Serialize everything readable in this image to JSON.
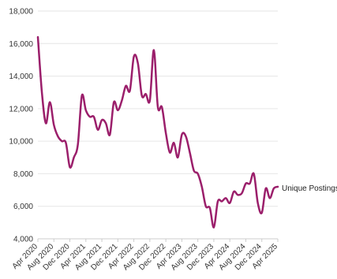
{
  "chart_data": {
    "type": "line",
    "title": "",
    "xlabel": "",
    "ylabel": "",
    "ylim": [
      4000,
      18000
    ],
    "yticks": [
      4000,
      6000,
      8000,
      10000,
      12000,
      14000,
      16000,
      18000
    ],
    "ytick_labels": [
      "4,000",
      "6,000",
      "8,000",
      "10,000",
      "12,000",
      "14,000",
      "16,000",
      "18,000"
    ],
    "xticks": [
      "Apr 2020",
      "Aug 2020",
      "Dec 2020",
      "Apr 2021",
      "Aug 2021",
      "Dec 2021",
      "Apr 2022",
      "Aug 2022",
      "Dec 2022",
      "Apr 2023",
      "Aug 2023",
      "Dec 2023",
      "Apr 2024",
      "Aug 2024",
      "Dec 2024",
      "Apr 2025"
    ],
    "grid": true,
    "line_color": "#9b1f6b",
    "series": [
      {
        "name": "Unique Postings",
        "x": [
          "2020-04",
          "2020-05",
          "2020-06",
          "2020-07",
          "2020-08",
          "2020-09",
          "2020-10",
          "2020-11",
          "2020-12",
          "2021-01",
          "2021-02",
          "2021-03",
          "2021-04",
          "2021-05",
          "2021-06",
          "2021-07",
          "2021-08",
          "2021-09",
          "2021-10",
          "2021-11",
          "2021-12",
          "2022-01",
          "2022-02",
          "2022-03",
          "2022-04",
          "2022-05",
          "2022-06",
          "2022-07",
          "2022-08",
          "2022-09",
          "2022-10",
          "2022-11",
          "2022-12",
          "2023-01",
          "2023-02",
          "2023-03",
          "2023-04",
          "2023-05",
          "2023-06",
          "2023-07",
          "2023-08",
          "2023-09",
          "2023-10",
          "2023-11",
          "2023-12",
          "2024-01",
          "2024-02",
          "2024-03",
          "2024-04",
          "2024-05",
          "2024-06",
          "2024-07",
          "2024-08",
          "2024-09",
          "2024-10",
          "2024-11",
          "2024-12",
          "2025-01",
          "2025-02",
          "2025-03",
          "2025-04"
        ],
        "values": [
          16400,
          13000,
          11100,
          12400,
          11000,
          10300,
          10000,
          9900,
          8400,
          9000,
          9800,
          12800,
          11900,
          11500,
          11500,
          10700,
          11300,
          11100,
          10400,
          12400,
          11900,
          12500,
          13400,
          13100,
          15200,
          14800,
          12800,
          12900,
          12500,
          15600,
          12100,
          12100,
          10500,
          9300,
          9900,
          9000,
          10400,
          10300,
          9300,
          8200,
          8000,
          7200,
          6000,
          5900,
          4700,
          6300,
          6300,
          6500,
          6200,
          6900,
          6700,
          6800,
          7400,
          7400,
          8000,
          6200,
          5600,
          7100,
          6500,
          7100,
          7200
        ]
      }
    ]
  }
}
